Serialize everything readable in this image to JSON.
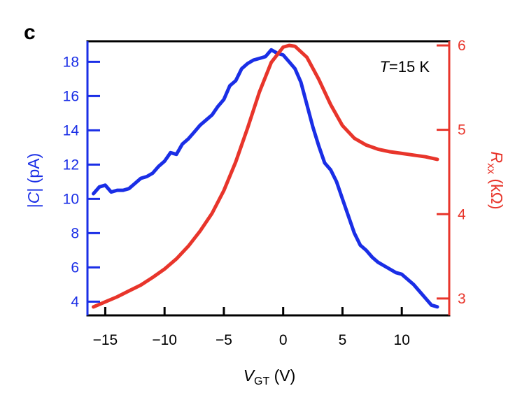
{
  "panel_label": "c",
  "annotation": {
    "var": "T",
    "rest": "=15 K"
  },
  "colors": {
    "left_axis": "#1a2ee6",
    "right_axis": "#e8352b",
    "frame": "#000000"
  },
  "chart_data": {
    "type": "line",
    "xlabel": {
      "main": "V",
      "sub": "GT",
      "unit": " (V)"
    },
    "ylabel_left": {
      "pre": "|",
      "var": "C",
      "post": "| (pA)"
    },
    "ylabel_right": {
      "main": "R",
      "sub": "xx",
      "unit": " (kΩ)"
    },
    "xlim": [
      -16.5,
      14.0
    ],
    "ylim_left": [
      3.2,
      19.2
    ],
    "ylim_right": [
      2.8,
      6.05
    ],
    "x_ticks": [
      -15,
      -10,
      -5,
      0,
      5,
      10
    ],
    "x_tick_labels": [
      "−15",
      "−10",
      "−5",
      "0",
      "5",
      "10"
    ],
    "y_left_ticks": [
      4,
      6,
      8,
      10,
      12,
      14,
      16,
      18
    ],
    "y_left_tick_labels": [
      "4",
      "6",
      "8",
      "10",
      "12",
      "14",
      "16",
      "18"
    ],
    "y_right_ticks": [
      3,
      4,
      5,
      6
    ],
    "y_right_tick_labels": [
      "3",
      "4",
      "5",
      "6"
    ],
    "series": [
      {
        "axis": "left",
        "color": "#1a2ee6",
        "x": [
          -16,
          -15.5,
          -15,
          -14.5,
          -14,
          -13.5,
          -13,
          -12.5,
          -12,
          -11.5,
          -11,
          -10.5,
          -10,
          -9.5,
          -9,
          -8.5,
          -8,
          -7.5,
          -7,
          -6.5,
          -6,
          -5.5,
          -5,
          -4.5,
          -4,
          -3.5,
          -3,
          -2.5,
          -2,
          -1.5,
          -1,
          -0.5,
          0,
          0.5,
          1,
          1.5,
          2,
          2.5,
          3,
          3.5,
          4,
          4.5,
          5,
          5.5,
          6,
          6.5,
          7,
          7.5,
          8,
          8.5,
          9,
          9.5,
          10,
          10.5,
          11,
          11.5,
          12,
          12.5,
          13
        ],
        "y": [
          10.3,
          10.7,
          10.8,
          10.4,
          10.5,
          10.5,
          10.6,
          10.9,
          11.2,
          11.3,
          11.5,
          11.9,
          12.2,
          12.7,
          12.6,
          13.2,
          13.5,
          13.9,
          14.3,
          14.6,
          14.9,
          15.4,
          15.8,
          16.6,
          16.9,
          17.6,
          17.9,
          18.1,
          18.2,
          18.3,
          18.7,
          18.5,
          18.4,
          18.0,
          17.6,
          16.8,
          15.5,
          14.2,
          13.1,
          12.1,
          11.7,
          11.0,
          10.0,
          9.0,
          8.0,
          7.3,
          7.0,
          6.6,
          6.3,
          6.1,
          5.9,
          5.7,
          5.6,
          5.3,
          5.0,
          4.6,
          4.2,
          3.8,
          3.7
        ]
      },
      {
        "axis": "right",
        "color": "#e8352b",
        "x": [
          -16,
          -15,
          -14,
          -13,
          -12,
          -11,
          -10,
          -9,
          -8,
          -7,
          -6,
          -5,
          -4,
          -3,
          -2,
          -1,
          0,
          0.5,
          1,
          2,
          3,
          4,
          5,
          6,
          7,
          8,
          9,
          10,
          11,
          12,
          13
        ],
        "y": [
          2.9,
          2.96,
          3.02,
          3.09,
          3.16,
          3.25,
          3.35,
          3.47,
          3.62,
          3.8,
          4.01,
          4.28,
          4.62,
          5.02,
          5.45,
          5.8,
          5.98,
          6.0,
          5.99,
          5.86,
          5.6,
          5.3,
          5.05,
          4.9,
          4.82,
          4.77,
          4.74,
          4.72,
          4.7,
          4.68,
          4.65
        ]
      }
    ]
  }
}
